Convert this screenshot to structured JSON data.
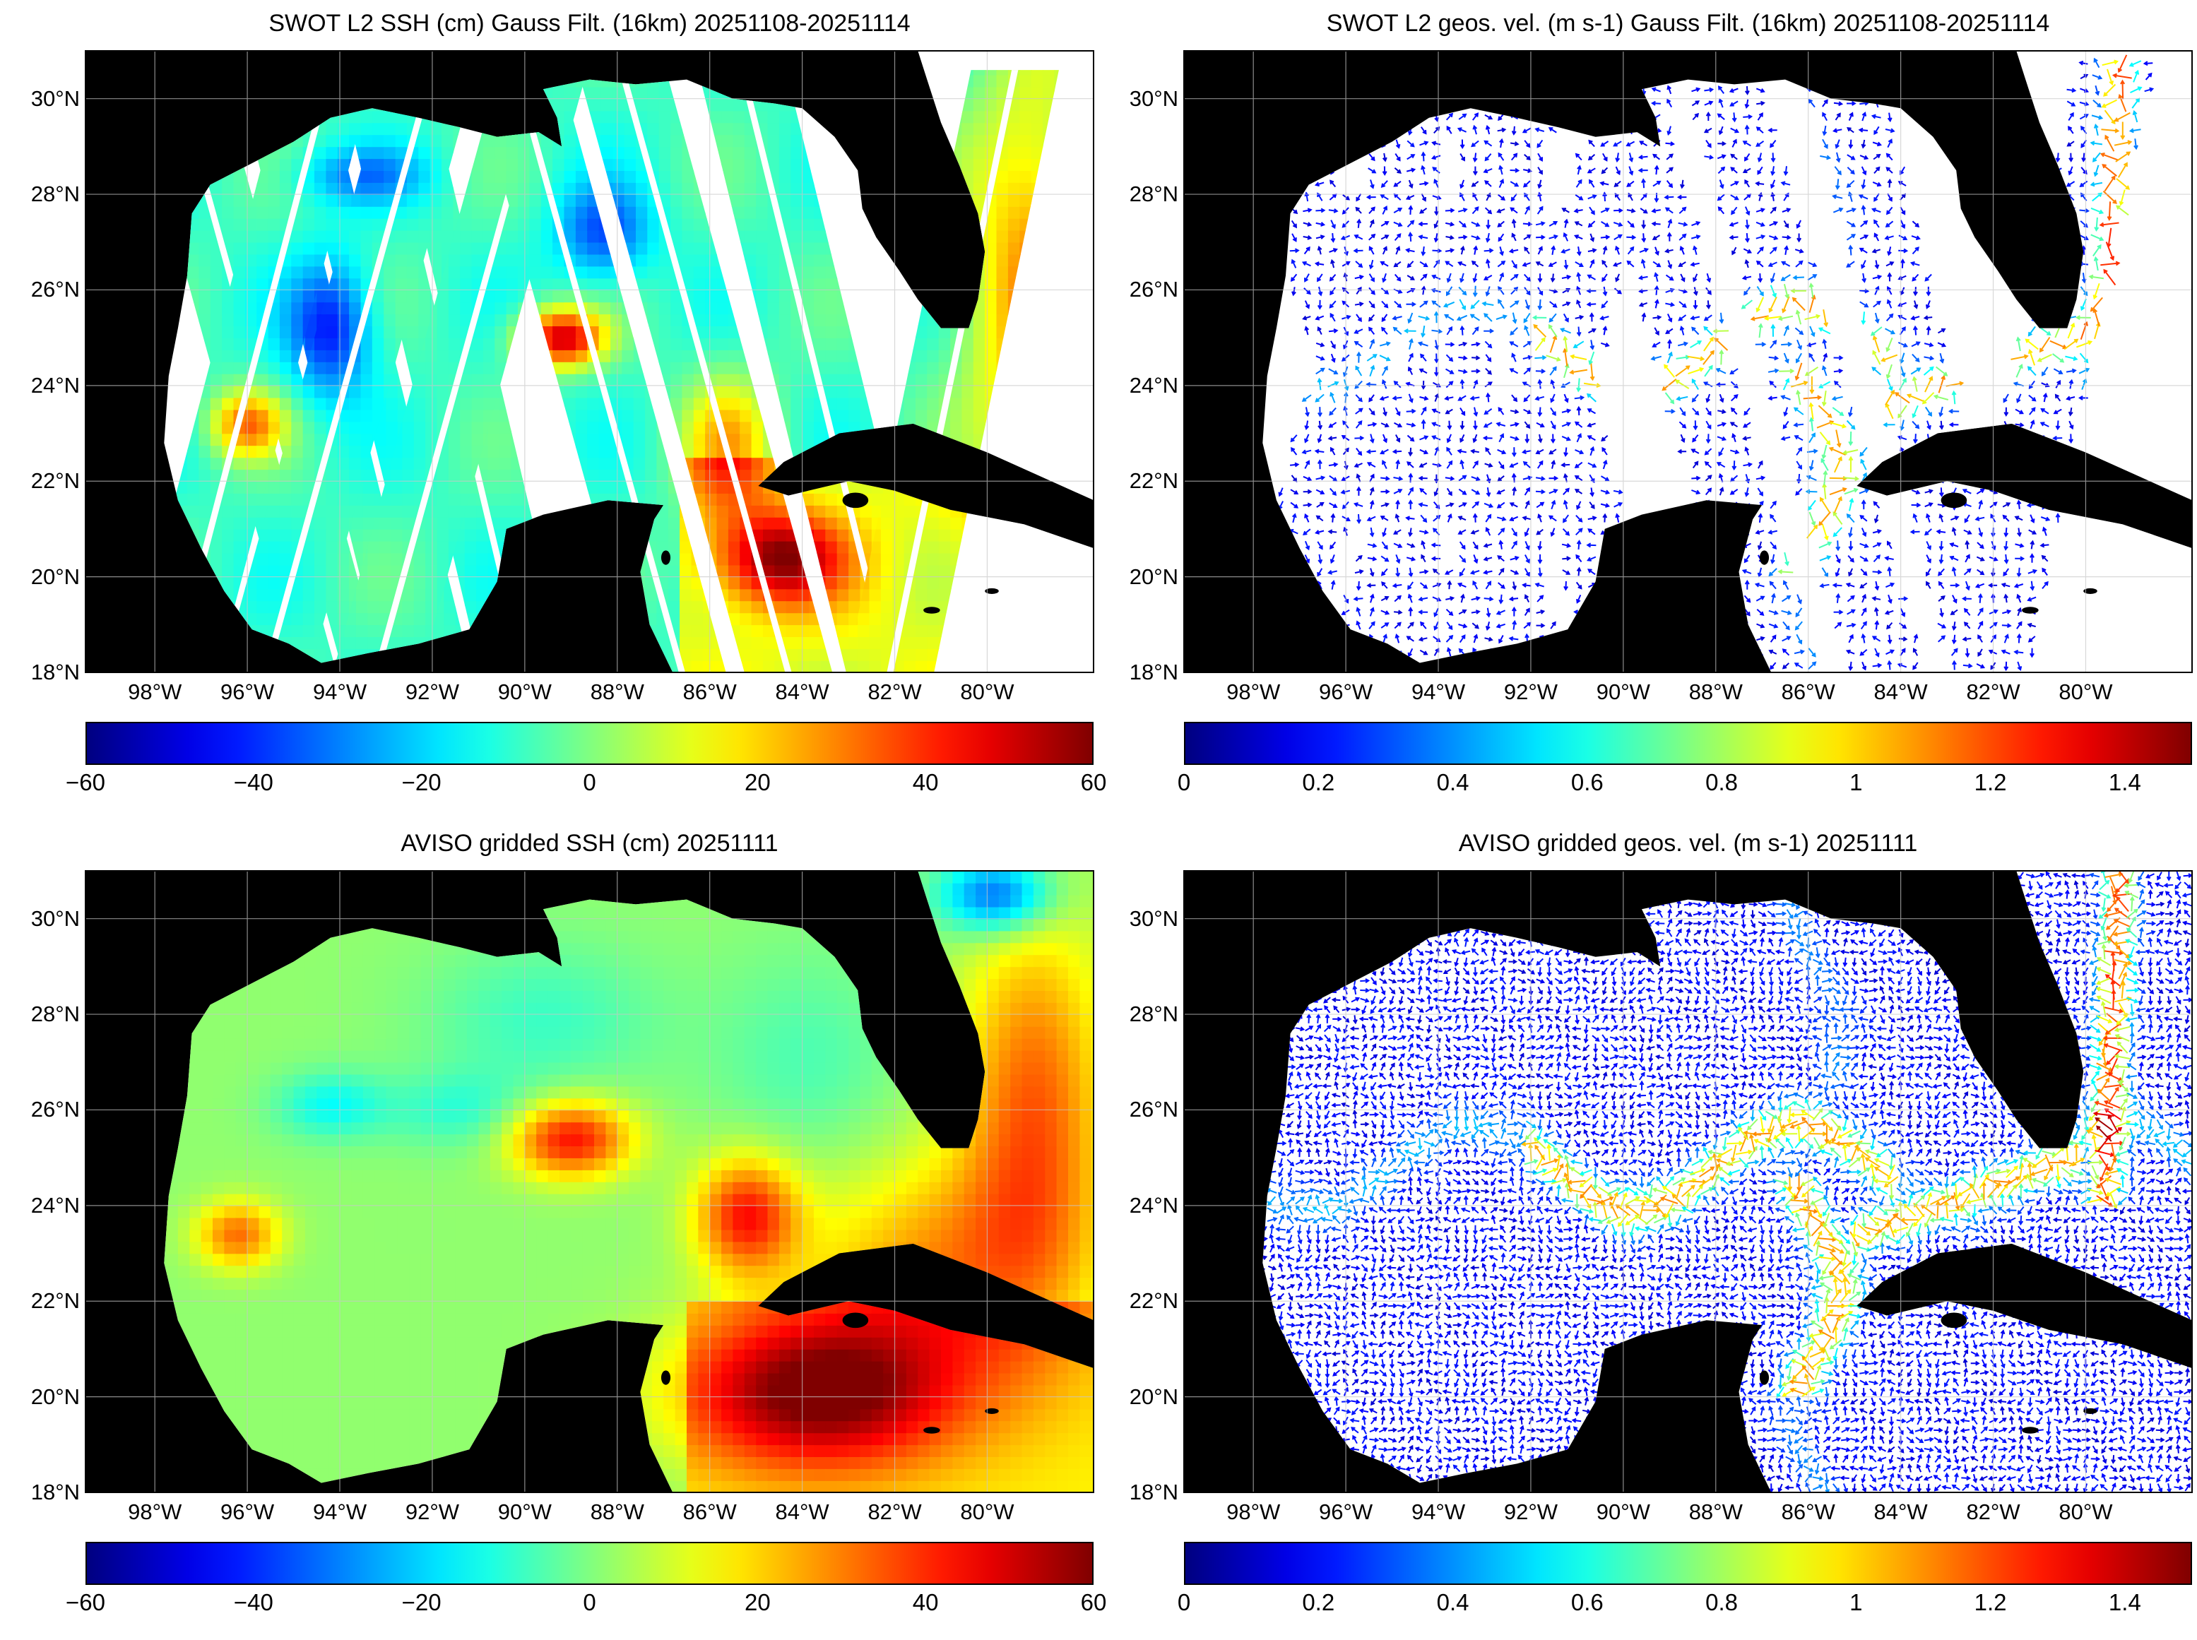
{
  "panels": [
    {
      "id": "swot-ssh",
      "title": "SWOT L2 SSH (cm) Gauss Filt. (16km) 20251108-20251114",
      "kind": "ssh-swaths",
      "colorbar": {
        "min": -60,
        "max": 60,
        "ticks": [
          "−60",
          "−40",
          "−20",
          "0",
          "20",
          "40",
          "60"
        ]
      }
    },
    {
      "id": "swot-vel",
      "title": "SWOT L2 geos. vel. (m s-1) Gauss Filt. (16km) 20251108-20251114",
      "kind": "vel-swaths",
      "colorbar": {
        "min": 0,
        "max": 1.5,
        "ticks": [
          "0",
          "0.2",
          "0.4",
          "0.6",
          "0.8",
          "1",
          "1.2",
          "1.4"
        ]
      }
    },
    {
      "id": "aviso-ssh",
      "title": "AVISO gridded SSH (cm) 20251111",
      "kind": "ssh-grid",
      "colorbar": {
        "min": -60,
        "max": 60,
        "ticks": [
          "−60",
          "−40",
          "−20",
          "0",
          "20",
          "40",
          "60"
        ]
      }
    },
    {
      "id": "aviso-vel",
      "title": "AVISO gridded geos. vel. (m s-1)  20251111",
      "kind": "vel-grid",
      "colorbar": {
        "min": 0,
        "max": 1.5,
        "ticks": [
          "0",
          "0.2",
          "0.4",
          "0.6",
          "0.8",
          "1",
          "1.2",
          "1.4"
        ]
      }
    }
  ],
  "map_extent": {
    "lon_min": -99.5,
    "lon_max": -77.7,
    "lat_min": 18,
    "lat_max": 31
  },
  "lat_labels": [
    "30°N",
    "28°N",
    "26°N",
    "24°N",
    "22°N",
    "20°N",
    "18°N"
  ],
  "lat_values": [
    30,
    28,
    26,
    24,
    22,
    20,
    18
  ],
  "lon_labels": [
    "98°W",
    "96°W",
    "94°W",
    "92°W",
    "90°W",
    "88°W",
    "86°W",
    "84°W",
    "82°W",
    "80°W"
  ],
  "lon_values": [
    -98,
    -96,
    -94,
    -92,
    -90,
    -88,
    -86,
    -84,
    -82,
    -80
  ],
  "colormap": "jet",
  "colors": {
    "land": "#000000",
    "nodata": "#ffffff",
    "grid": "#c8c8c8"
  }
}
